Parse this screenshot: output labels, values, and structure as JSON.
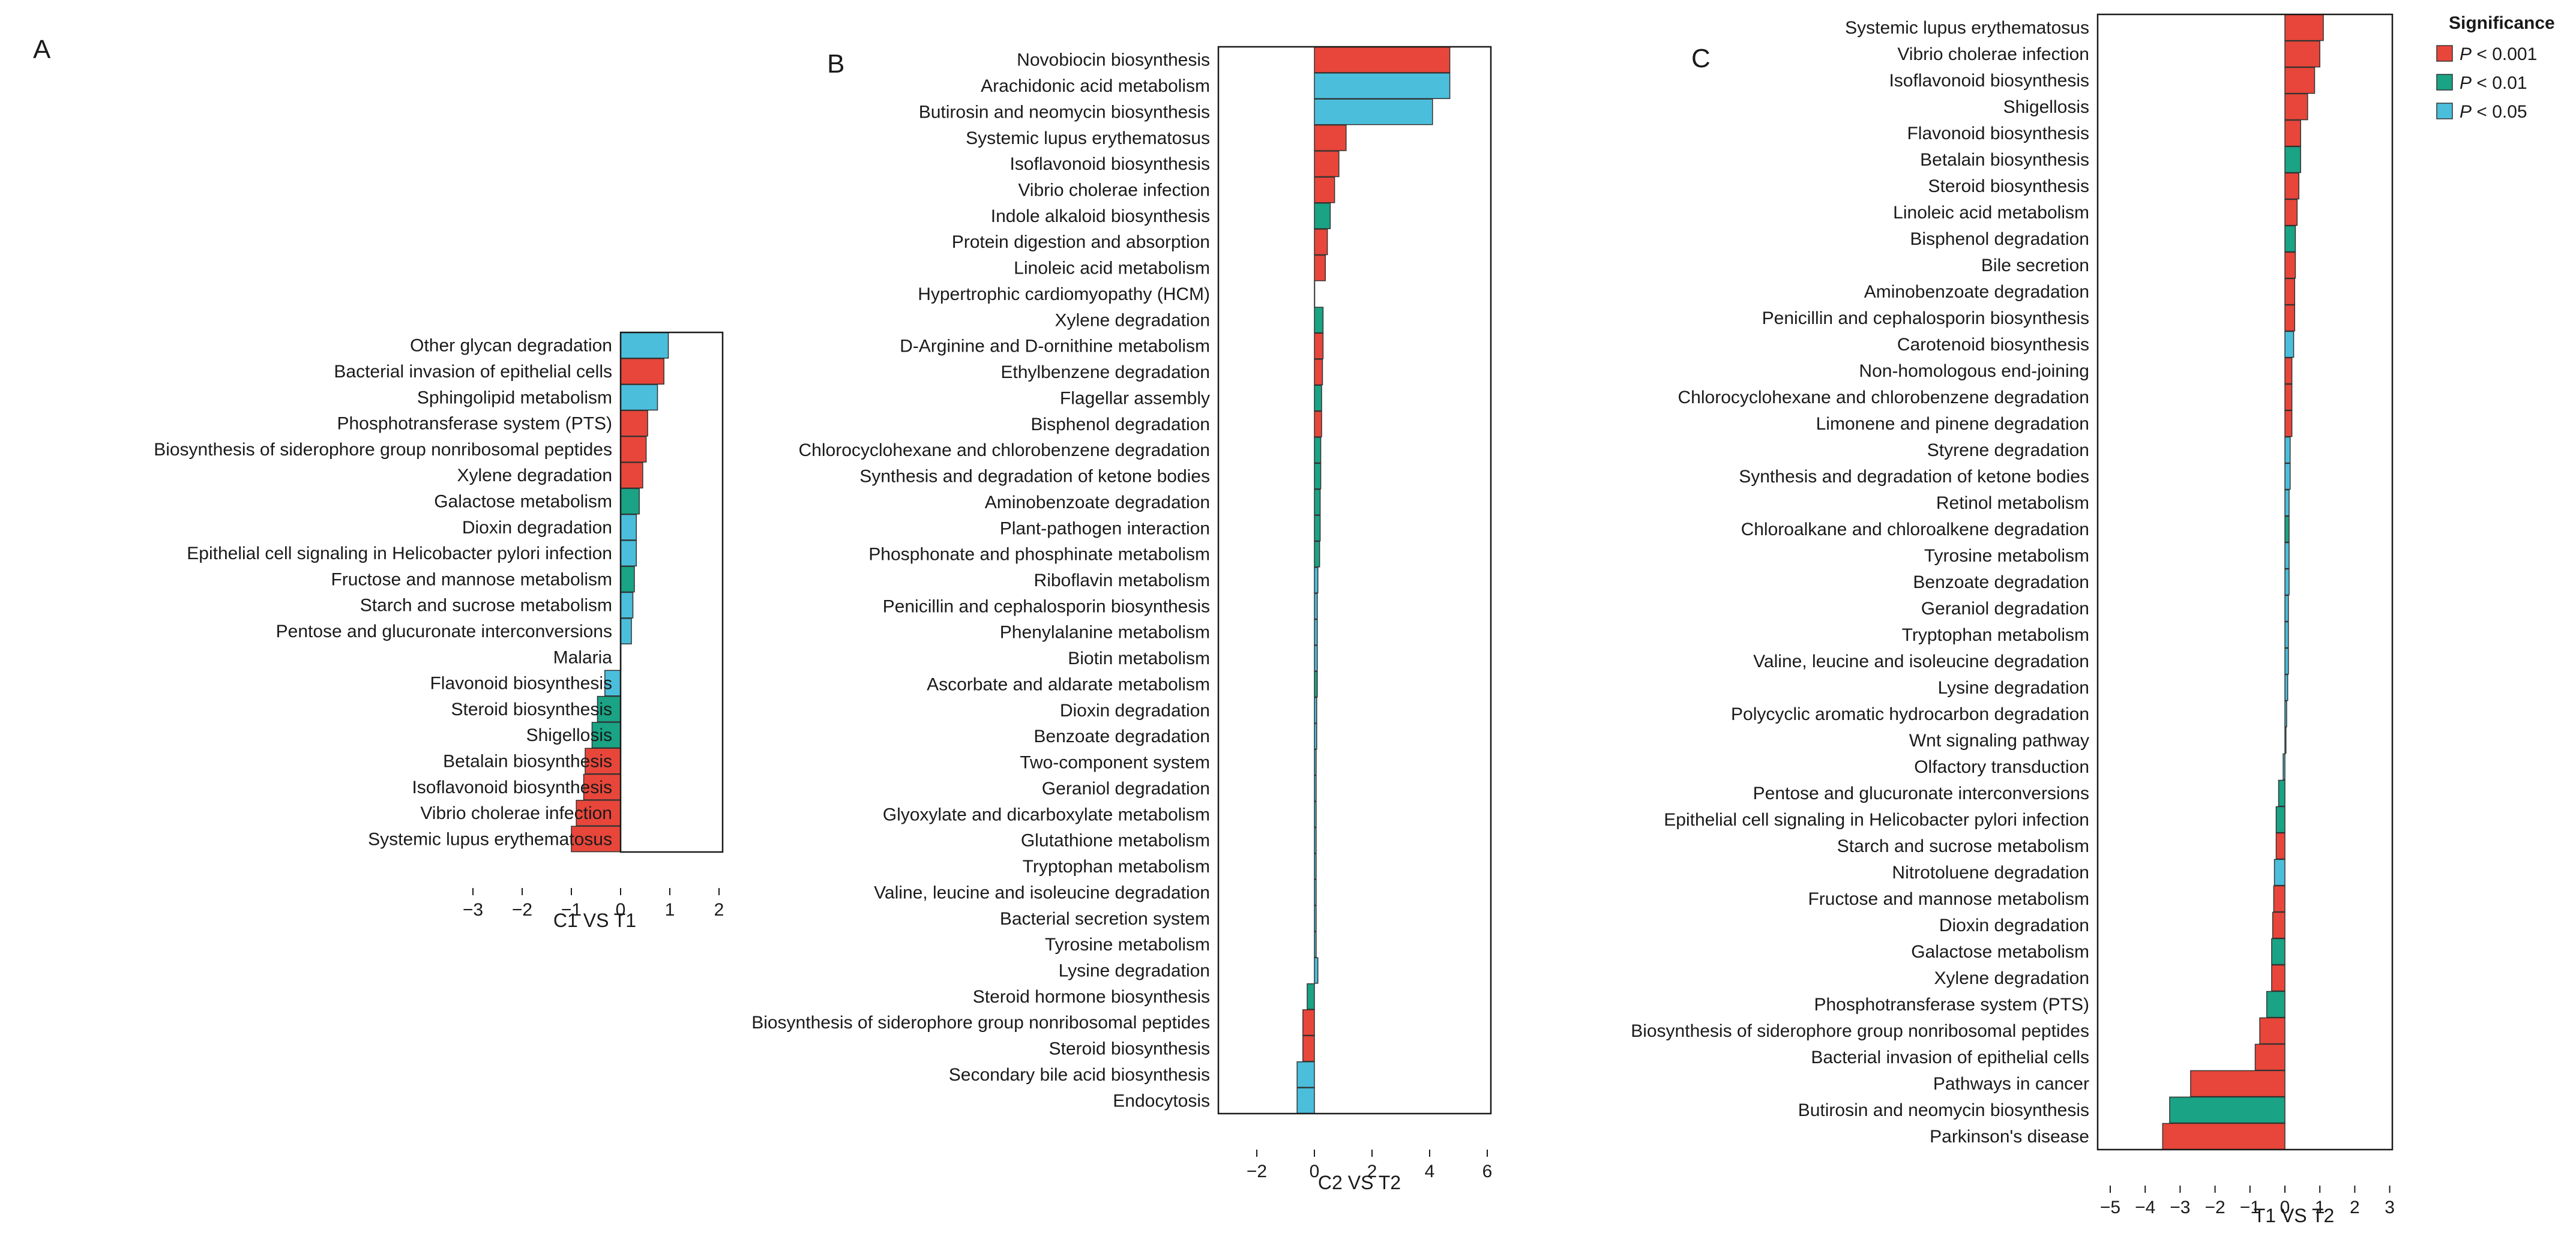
{
  "colors": {
    "p001": "#e8463a",
    "p01": "#1aa384",
    "p05": "#4bbedb"
  },
  "legend": {
    "title": "Significance",
    "items": [
      {
        "key": "p001",
        "prefix": "P",
        "text": " < 0.001"
      },
      {
        "key": "p01",
        "prefix": "P",
        "text": " < 0.01"
      },
      {
        "key": "p05",
        "prefix": "P",
        "text": " < 0.05"
      }
    ]
  },
  "chart_data": [
    {
      "type": "bar",
      "orientation": "horizontal",
      "panel": "A",
      "xlabel": "C1 VS  T1",
      "xlim": [
        -3,
        2
      ],
      "xticks": [
        -3,
        -2,
        -1,
        0,
        1,
        2
      ],
      "xtick_labels": [
        "−3",
        "−2",
        "−1",
        "0",
        "1",
        "2"
      ],
      "categories": [
        "Other glycan degradation",
        "Bacterial invasion of epithelial cells",
        "Sphingolipid metabolism",
        "Phosphotransferase system (PTS)",
        "Biosynthesis of siderophore group nonribosomal peptides",
        "Xylene degradation",
        "Galactose metabolism",
        "Dioxin degradation",
        "Epithelial cell signaling in Helicobacter pylori infection",
        "Fructose and mannose metabolism",
        "Starch and sucrose metabolism",
        "Pentose and glucuronate interconversions",
        "Malaria",
        "Flavonoid biosynthesis",
        "Steroid biosynthesis",
        "Shigellosis",
        "Betalain biosynthesis",
        "Isoflavonoid biosynthesis",
        "Vibrio cholerae infection",
        "Systemic lupus erythematosus"
      ],
      "values": [
        0.97,
        0.88,
        0.75,
        0.55,
        0.52,
        0.45,
        0.38,
        0.32,
        0.32,
        0.28,
        0.25,
        0.22,
        0.0,
        -0.32,
        -0.47,
        -0.58,
        -0.72,
        -0.75,
        -0.9,
        -1.0
      ],
      "significance": [
        "p05",
        "p001",
        "p05",
        "p001",
        "p001",
        "p001",
        "p01",
        "p05",
        "p05",
        "p01",
        "p05",
        "p05",
        "p05",
        "p05",
        "p01",
        "p01",
        "p001",
        "p001",
        "p001",
        "p001"
      ]
    },
    {
      "type": "bar",
      "orientation": "horizontal",
      "panel": "B",
      "xlabel": "C2 VS  T2",
      "xlim": [
        -3.3,
        6.2
      ],
      "xticks": [
        -2,
        0,
        2,
        4,
        6
      ],
      "xtick_labels": [
        "−2",
        "0",
        "2",
        "4",
        "6"
      ],
      "categories": [
        "Novobiocin biosynthesis",
        "Arachidonic acid metabolism",
        "Butirosin and neomycin biosynthesis",
        "Systemic lupus erythematosus",
        "Isoflavonoid biosynthesis",
        "Vibrio cholerae infection",
        "Indole alkaloid biosynthesis",
        "Protein digestion and absorption",
        "Linoleic acid metabolism",
        "Hypertrophic cardiomyopathy (HCM)",
        "Xylene degradation",
        "D-Arginine and D-ornithine metabolism",
        "Ethylbenzene degradation",
        "Flagellar assembly",
        "Bisphenol degradation",
        "Chlorocyclohexane and chlorobenzene degradation",
        "Synthesis and degradation of ketone bodies",
        "Aminobenzoate degradation",
        "Plant-pathogen interaction",
        "Phosphonate and phosphinate metabolism",
        "Riboflavin metabolism",
        "Penicillin and cephalosporin biosynthesis",
        "Phenylalanine metabolism",
        "Biotin metabolism",
        "Ascorbate and aldarate metabolism",
        "Dioxin degradation",
        "Benzoate degradation",
        "Two-component system",
        "Geraniol degradation",
        "Glyoxylate and dicarboxylate metabolism",
        "Glutathione metabolism",
        "Tryptophan metabolism",
        "Valine, leucine and isoleucine degradation",
        "Bacterial secretion system",
        "Tyrosine metabolism",
        "Lysine degradation",
        "Steroid hormone biosynthesis",
        "Biosynthesis of siderophore group nonribosomal peptides",
        "Steroid biosynthesis",
        "Secondary bile acid biosynthesis",
        "Endocytosis"
      ],
      "values": [
        4.7,
        4.7,
        4.1,
        1.1,
        0.85,
        0.7,
        0.55,
        0.45,
        0.38,
        0.0,
        0.3,
        0.3,
        0.28,
        0.25,
        0.25,
        0.22,
        0.22,
        0.2,
        0.2,
        0.18,
        0.12,
        0.1,
        0.1,
        0.1,
        0.1,
        0.08,
        0.08,
        0.06,
        0.06,
        0.06,
        0.06,
        0.06,
        0.06,
        0.06,
        0.06,
        0.12,
        -0.25,
        -0.4,
        -0.4,
        -0.6,
        -0.6
      ],
      "significance": [
        "p001",
        "p05",
        "p05",
        "p001",
        "p001",
        "p001",
        "p01",
        "p001",
        "p001",
        "p001",
        "p01",
        "p001",
        "p001",
        "p01",
        "p001",
        "p01",
        "p01",
        "p01",
        "p01",
        "p01",
        "p05",
        "p05",
        "p05",
        "p05",
        "p01",
        "p05",
        "p05",
        "p05",
        "p05",
        "p05",
        "p05",
        "p05",
        "p05",
        "p05",
        "p05",
        "p05",
        "p01",
        "p001",
        "p001",
        "p05",
        "p05"
      ]
    },
    {
      "type": "bar",
      "orientation": "horizontal",
      "panel": "C",
      "xlabel": "T1  VS  T2",
      "xlim": [
        -5,
        3
      ],
      "xticks": [
        -5,
        -4,
        -3,
        -2,
        -1,
        0,
        1,
        2,
        3
      ],
      "xtick_labels": [
        "−5",
        "−4",
        "−3",
        "−2",
        "−1",
        "0",
        "1",
        "2",
        "3"
      ],
      "categories": [
        "Systemic lupus erythematosus",
        "Vibrio cholerae infection",
        "Isoflavonoid biosynthesis",
        "Shigellosis",
        "Flavonoid biosynthesis",
        "Betalain biosynthesis",
        "Steroid biosynthesis",
        "Linoleic acid metabolism",
        "Bisphenol degradation",
        "Bile secretion",
        "Aminobenzoate degradation",
        "Penicillin and cephalosporin biosynthesis",
        "Carotenoid biosynthesis",
        "Non-homologous end-joining",
        "Chlorocyclohexane and chlorobenzene degradation",
        "Limonene and pinene degradation",
        "Styrene degradation",
        "Synthesis and degradation of ketone bodies",
        "Retinol metabolism",
        "Chloroalkane and chloroalkene degradation",
        "Tyrosine metabolism",
        "Benzoate degradation",
        "Geraniol degradation",
        "Tryptophan metabolism",
        "Valine, leucine and isoleucine degradation",
        "Lysine degradation",
        "Polycyclic aromatic hydrocarbon degradation",
        "Wnt signaling pathway",
        "Olfactory transduction",
        "Pentose and glucuronate interconversions",
        "Epithelial cell signaling in Helicobacter pylori infection",
        "Starch and sucrose metabolism",
        "Nitrotoluene degradation",
        "Fructose and mannose metabolism",
        "Dioxin degradation",
        "Galactose metabolism",
        "Xylene degradation",
        "Phosphotransferase system (PTS)",
        "Biosynthesis of siderophore group nonribosomal peptides",
        "Bacterial invasion of epithelial cells",
        "Pathways in cancer",
        "Butirosin and neomycin biosynthesis",
        "Parkinson's disease"
      ],
      "values": [
        1.1,
        1.0,
        0.85,
        0.65,
        0.45,
        0.45,
        0.4,
        0.35,
        0.3,
        0.3,
        0.28,
        0.28,
        0.25,
        0.2,
        0.2,
        0.2,
        0.15,
        0.15,
        0.12,
        0.12,
        0.12,
        0.12,
        0.1,
        0.1,
        0.1,
        0.08,
        0.05,
        0.03,
        -0.05,
        -0.18,
        -0.25,
        -0.25,
        -0.3,
        -0.32,
        -0.35,
        -0.38,
        -0.38,
        -0.52,
        -0.72,
        -0.85,
        -2.7,
        -3.3,
        -3.5
      ],
      "significance": [
        "p001",
        "p001",
        "p001",
        "p001",
        "p001",
        "p01",
        "p001",
        "p001",
        "p01",
        "p001",
        "p001",
        "p001",
        "p05",
        "p001",
        "p001",
        "p001",
        "p05",
        "p05",
        "p05",
        "p01",
        "p05",
        "p05",
        "p05",
        "p05",
        "p05",
        "p05",
        "p05",
        "p05",
        "p05",
        "p01",
        "p01",
        "p001",
        "p05",
        "p001",
        "p001",
        "p01",
        "p001",
        "p01",
        "p001",
        "p001",
        "p001",
        "p01",
        "p001"
      ]
    }
  ]
}
